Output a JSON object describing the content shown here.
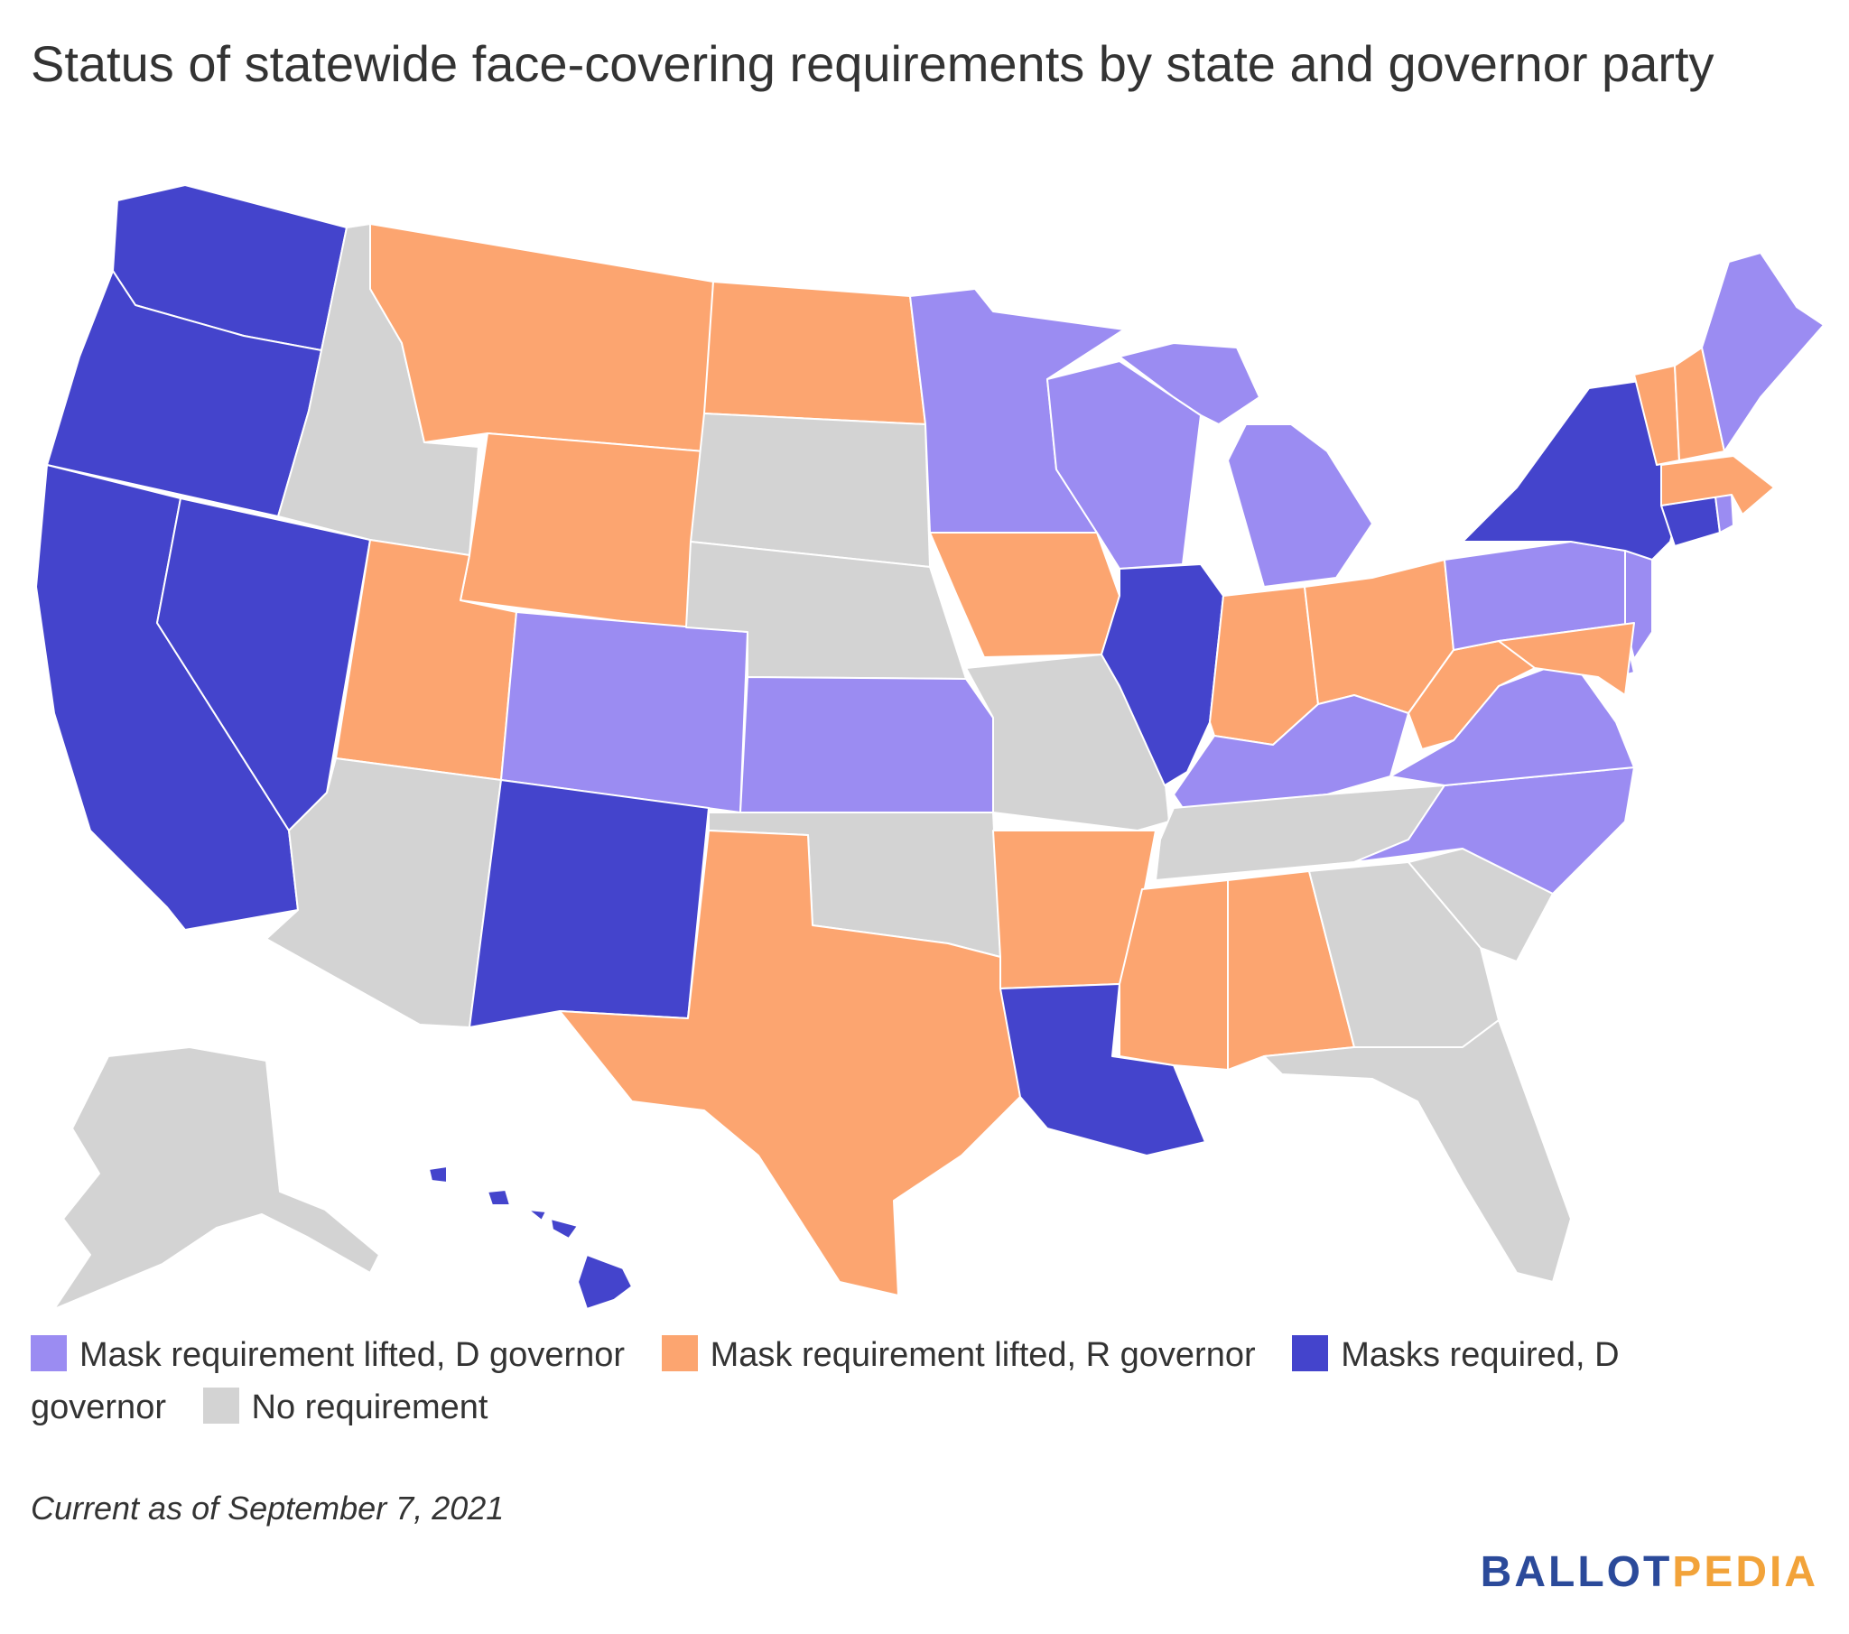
{
  "title": "Status of statewide face-covering requirements by state and governor party",
  "legend": [
    {
      "label": "Mask requirement lifted, D governor",
      "color": "#9b8cf2"
    },
    {
      "label": "Mask requirement lifted, R governor",
      "color": "#fca570"
    },
    {
      "label": "Masks required, D governor",
      "color": "#4444cc"
    },
    {
      "label": "No requirement",
      "color": "#d3d3d3"
    }
  ],
  "footnote": "Current as of September 7, 2021",
  "logo": {
    "part1": "BALLOT",
    "part2": "PEDIA"
  }
}
